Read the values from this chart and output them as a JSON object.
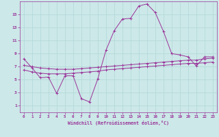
{
  "xlabel": "Windchill (Refroidissement éolien,°C)",
  "bg_color": "#cce8e8",
  "line_color": "#993399",
  "xlim": [
    -0.5,
    23.5
  ],
  "ylim": [
    0,
    17
  ],
  "xticks": [
    0,
    1,
    2,
    3,
    4,
    5,
    6,
    7,
    8,
    9,
    10,
    11,
    12,
    13,
    14,
    15,
    16,
    17,
    18,
    19,
    20,
    21,
    22,
    23
  ],
  "yticks": [
    1,
    3,
    5,
    7,
    9,
    11,
    13,
    15
  ],
  "grid_color": "#aad4d4",
  "curve1_x": [
    0,
    1,
    2,
    3,
    4,
    5,
    6,
    7,
    8,
    9,
    10,
    11,
    12,
    13,
    14,
    15,
    16,
    17,
    18,
    19,
    20,
    21,
    22,
    23
  ],
  "curve1_y": [
    8.2,
    6.8,
    5.3,
    5.4,
    2.9,
    5.6,
    5.6,
    2.1,
    1.6,
    5.1,
    9.5,
    12.5,
    14.3,
    14.4,
    16.3,
    16.6,
    15.3,
    12.4,
    9.0,
    8.8,
    8.5,
    7.1,
    8.5,
    8.5
  ],
  "curve2_x": [
    0,
    1,
    2,
    3,
    4,
    5,
    6,
    7,
    8,
    9,
    10,
    11,
    12,
    13,
    14,
    15,
    16,
    17,
    18,
    19,
    20,
    21,
    22,
    23
  ],
  "curve2_y": [
    7.2,
    7.0,
    6.8,
    6.7,
    6.6,
    6.6,
    6.6,
    6.7,
    6.8,
    6.9,
    7.0,
    7.1,
    7.2,
    7.3,
    7.4,
    7.5,
    7.6,
    7.7,
    7.8,
    7.9,
    8.0,
    8.0,
    8.2,
    8.3
  ],
  "curve3_x": [
    0,
    1,
    2,
    3,
    4,
    5,
    6,
    7,
    8,
    9,
    10,
    11,
    12,
    13,
    14,
    15,
    16,
    17,
    18,
    19,
    20,
    21,
    22,
    23
  ],
  "curve3_y": [
    6.5,
    6.2,
    6.0,
    5.9,
    5.9,
    5.9,
    6.0,
    6.1,
    6.2,
    6.3,
    6.5,
    6.6,
    6.7,
    6.8,
    6.9,
    7.0,
    7.1,
    7.2,
    7.3,
    7.4,
    7.5,
    7.5,
    7.6,
    7.7
  ]
}
